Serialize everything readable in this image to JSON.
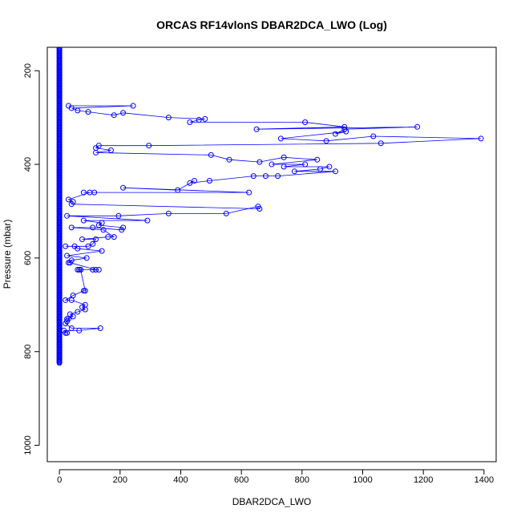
{
  "chart_data": {
    "type": "scatter",
    "title": "ORCAS RF14vlonS DBAR2DCA_LWO (Log)",
    "xlabel": "DBAR2DCA_LWO",
    "ylabel": "Pressure (mbar)",
    "x_ticks": [
      "0",
      "200",
      "400",
      "600",
      "800",
      "1000",
      "1200",
      "1400"
    ],
    "y_ticks": [
      "200",
      "400",
      "600",
      "800",
      "1000"
    ],
    "xlim": [
      -40,
      1440
    ],
    "ylim": [
      1035,
      150
    ],
    "y_reversed": true,
    "line_color": "#0000ff",
    "point_color": "#0000ff",
    "series": [
      {
        "x": [
          30,
          243,
          40,
          60,
          95,
          180,
          210,
          360,
          480,
          460,
          430,
          810,
          940,
          650,
          1180,
          940,
          910,
          945,
          730,
          880,
          1035,
          1390,
          1060,
          295,
          130,
          120,
          170,
          120,
          500,
          560,
          660,
          740,
          850,
          700,
          810,
          740,
          890,
          860,
          775,
          910,
          720,
          680,
          640,
          495,
          430,
          445,
          390,
          210,
          625,
          115,
          80,
          100,
          30,
          45,
          40,
          660,
          655,
          550,
          360,
          195,
          25,
          290,
          80,
          140,
          130,
          210,
          205,
          110,
          40,
          145,
          180,
          160,
          75,
          120,
          110,
          95,
          20,
          50,
          60,
          140,
          25,
          90,
          40,
          30,
          35,
          120,
          70,
          110,
          60,
          65,
          130,
          70,
          85,
          80,
          45,
          20,
          40,
          85,
          75,
          85,
          60,
          35,
          45,
          25,
          30,
          25,
          20,
          40,
          135,
          65,
          15,
          25,
          20
        ],
        "y": [
          275,
          275,
          280,
          285,
          288,
          295,
          290,
          300,
          303,
          305,
          310,
          310,
          320,
          325,
          320,
          325,
          335,
          330,
          345,
          350,
          340,
          345,
          355,
          360,
          360,
          365,
          370,
          375,
          380,
          390,
          395,
          385,
          390,
          400,
          400,
          405,
          405,
          410,
          415,
          415,
          425,
          425,
          425,
          435,
          440,
          435,
          455,
          450,
          460,
          460,
          460,
          460,
          475,
          480,
          485,
          495,
          490,
          505,
          505,
          510,
          510,
          520,
          520,
          525,
          530,
          535,
          540,
          535,
          535,
          540,
          555,
          555,
          560,
          560,
          570,
          575,
          575,
          575,
          580,
          585,
          595,
          600,
          605,
          610,
          610,
          625,
          625,
          625,
          625,
          625,
          625,
          625,
          670,
          670,
          680,
          690,
          690,
          700,
          705,
          710,
          715,
          720,
          725,
          730,
          730,
          735,
          740,
          750,
          750,
          755,
          755,
          760,
          760
        ]
      },
      {
        "x": [
          0
        ],
        "y": [
          150
        ],
        "points": "dense column at x=0 from 150 to 825"
      }
    ]
  }
}
